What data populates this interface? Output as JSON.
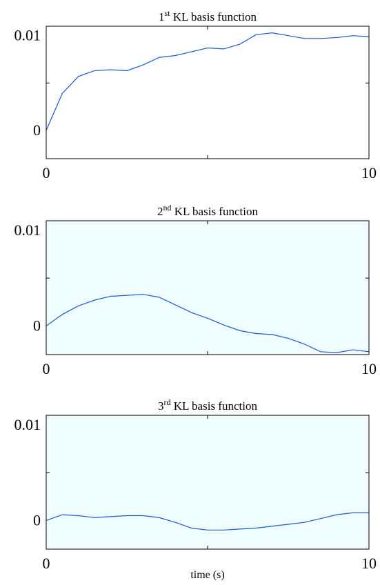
{
  "chart_data": [
    {
      "type": "line",
      "title_main": "1",
      "title_sup": "st",
      "title_rest": " KL basis function",
      "xlabel": "",
      "xlim": [
        0,
        10
      ],
      "ylim": [
        -0.003,
        0.011
      ],
      "xticks": [
        0,
        10
      ],
      "xtick_labels": [
        "0",
        "10"
      ],
      "yticks": [
        0,
        0.01
      ],
      "ytick_labels": [
        "0",
        "0.01"
      ],
      "background": "#ffffff",
      "line_color": "#1f56d6",
      "x": [
        0,
        0.5,
        1,
        1.5,
        2,
        2.5,
        3,
        3.5,
        4,
        4.5,
        5,
        5.5,
        6,
        6.5,
        7,
        7.5,
        8,
        8.5,
        9,
        9.5,
        10
      ],
      "y": [
        0.0,
        0.0039,
        0.0057,
        0.0063,
        0.0064,
        0.0063,
        0.0069,
        0.0077,
        0.0079,
        0.0083,
        0.0087,
        0.0086,
        0.0091,
        0.0101,
        0.0103,
        0.01,
        0.0097,
        0.0097,
        0.0098,
        0.01,
        0.0099
      ]
    },
    {
      "type": "line",
      "title_main": "2",
      "title_sup": "nd",
      "title_rest": " KL basis function",
      "xlabel": "",
      "xlim": [
        0,
        10
      ],
      "ylim": [
        -0.003,
        0.011
      ],
      "xticks": [
        0,
        10
      ],
      "xtick_labels": [
        "0",
        "10"
      ],
      "yticks": [
        0,
        0.01
      ],
      "ytick_labels": [
        "0",
        "0.01"
      ],
      "background": "#f0fdfe",
      "line_color": "#1f56d6",
      "x": [
        0,
        0.5,
        1,
        1.5,
        2,
        2.5,
        3,
        3.5,
        4,
        4.5,
        5,
        5.5,
        6,
        6.5,
        7,
        7.5,
        8,
        8.5,
        9,
        9.5,
        10
      ],
      "y": [
        0.0,
        0.0012,
        0.0021,
        0.0027,
        0.0031,
        0.0032,
        0.0033,
        0.003,
        0.0022,
        0.0014,
        0.0008,
        0.0001,
        -0.0005,
        -0.0008,
        -0.0009,
        -0.0013,
        -0.0019,
        -0.0027,
        -0.0028,
        -0.0025,
        -0.0027
      ]
    },
    {
      "type": "line",
      "title_main": "3",
      "title_sup": "rd",
      "title_rest": " KL basis function",
      "xlabel": "time (s)",
      "xlim": [
        0,
        10
      ],
      "ylim": [
        -0.003,
        0.011
      ],
      "xticks": [
        0,
        10
      ],
      "xtick_labels": [
        "0",
        "10"
      ],
      "yticks": [
        0,
        0.01
      ],
      "ytick_labels": [
        "0",
        "0.01"
      ],
      "background": "#f0fdfe",
      "line_color": "#1f56d6",
      "x": [
        0,
        0.5,
        1,
        1.5,
        2,
        2.5,
        3,
        3.5,
        4,
        4.5,
        5,
        5.5,
        6,
        6.5,
        7,
        7.5,
        8,
        8.5,
        9,
        9.5,
        10
      ],
      "y": [
        0.0,
        0.0006,
        0.0005,
        0.0003,
        0.0004,
        0.0005,
        0.0005,
        0.0003,
        -0.0002,
        -0.0008,
        -0.001,
        -0.001,
        -0.0009,
        -0.0008,
        -0.0006,
        -0.0004,
        -0.0002,
        0.0002,
        0.0006,
        0.0008,
        0.0008
      ]
    }
  ]
}
